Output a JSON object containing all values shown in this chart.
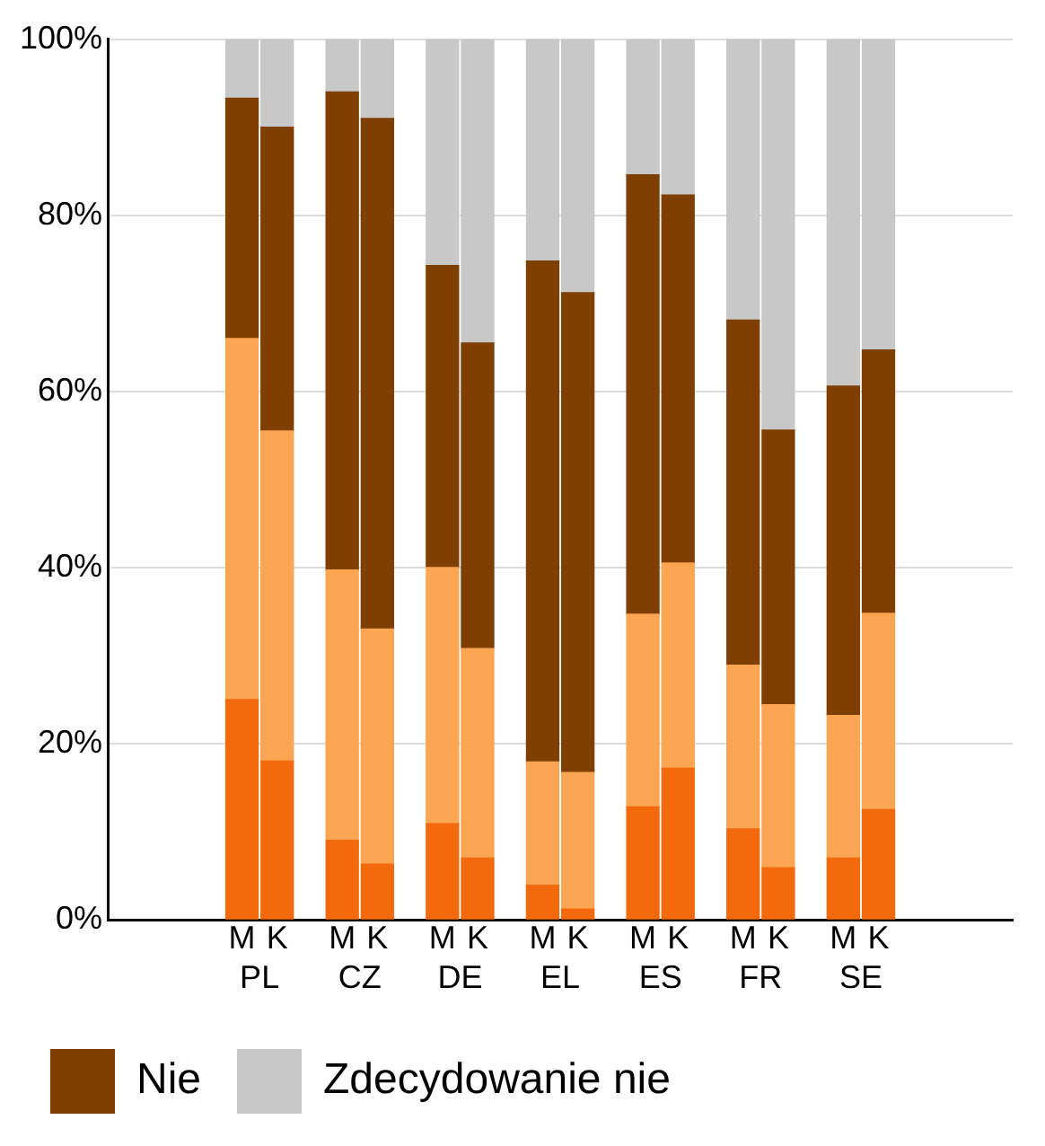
{
  "chart_data": {
    "type": "bar",
    "stacked": true,
    "categories": [
      "M",
      "K",
      "M",
      "K",
      "M",
      "K",
      "M",
      "K",
      "M",
      "K",
      "M",
      "K",
      "M",
      "K"
    ],
    "annotations": [
      "PL",
      "CZ",
      "DE",
      "EL",
      "ES",
      "FR",
      "SE"
    ],
    "series": [
      {
        "color": "#f26a0c",
        "values": [
          25,
          18,
          9,
          6.3,
          10.9,
          7,
          3.9,
          1.2,
          12.8,
          17.2,
          10.3,
          5.9,
          7,
          12.5
        ]
      },
      {
        "color": "#fca552",
        "values": [
          41,
          37.5,
          30.7,
          26.7,
          29.1,
          23.8,
          14,
          15.5,
          21.9,
          23.3,
          18.6,
          18.5,
          16.2,
          22.3
        ]
      },
      {
        "name": "Nie",
        "color": "#7f3f00",
        "values": [
          27.3,
          34.5,
          54.3,
          58,
          34.3,
          34.7,
          56.9,
          54.5,
          49.9,
          41.8,
          39.2,
          31.2,
          37.4,
          29.9
        ]
      },
      {
        "name": "Zdecydowanie nie",
        "color": "#c8c8c8",
        "values": [
          6.7,
          10,
          6,
          9,
          25.7,
          34.5,
          25.2,
          28.8,
          15.4,
          17.7,
          31.9,
          44.4,
          39.4,
          35.3
        ]
      }
    ],
    "ylim": [
      0,
      100
    ],
    "yticks": [
      {
        "value": 0,
        "label": "0%"
      },
      {
        "value": 20,
        "label": "20%"
      },
      {
        "value": 40,
        "label": "40%"
      },
      {
        "value": 60,
        "label": "60%"
      },
      {
        "value": 80,
        "label": "80%"
      },
      {
        "value": 100,
        "label": "100%"
      }
    ],
    "grid": "y",
    "legend": "bottom"
  }
}
